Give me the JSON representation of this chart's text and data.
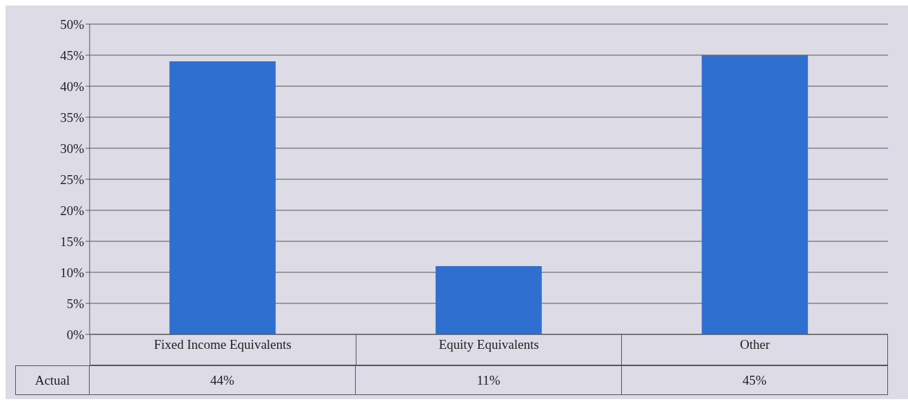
{
  "chart_data": {
    "type": "bar",
    "categories": [
      "Fixed Income Equivalents",
      "Equity Equivalents",
      "Other"
    ],
    "series": [
      {
        "name": "Actual",
        "color": "#2f6fd0",
        "values": [
          44,
          11,
          45
        ],
        "value_labels": [
          "44%",
          "11%",
          "45%"
        ]
      }
    ],
    "ylim": [
      0,
      50
    ],
    "yticks": [
      {
        "value": 0,
        "label": "0%"
      },
      {
        "value": 5,
        "label": "5%"
      },
      {
        "value": 10,
        "label": "10%"
      },
      {
        "value": 15,
        "label": "15%"
      },
      {
        "value": 20,
        "label": "20%"
      },
      {
        "value": 25,
        "label": "25%"
      },
      {
        "value": 30,
        "label": "30%"
      },
      {
        "value": 35,
        "label": "35%"
      },
      {
        "value": 40,
        "label": "40%"
      },
      {
        "value": 45,
        "label": "45%"
      },
      {
        "value": 50,
        "label": "50%"
      }
    ],
    "grid": "y",
    "legend": false
  }
}
